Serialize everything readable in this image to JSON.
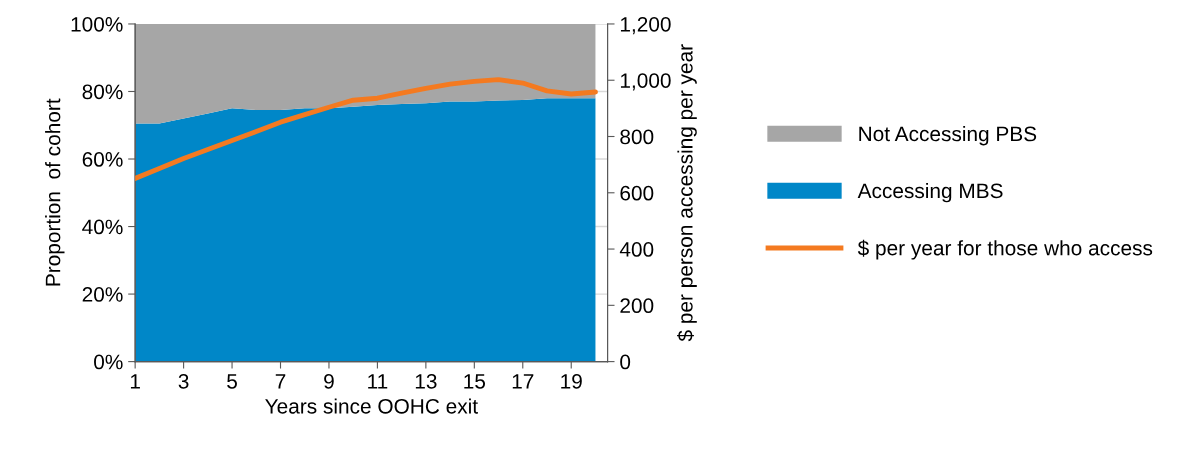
{
  "chart_data": {
    "type": "area",
    "stacked": true,
    "xlabel": "Years since OOHC exit",
    "ylabel": "Proportion  of cohort",
    "y2label": "$ per person accessing per year",
    "x": [
      1,
      2,
      3,
      4,
      5,
      6,
      7,
      8,
      9,
      10,
      11,
      12,
      13,
      14,
      15,
      16,
      17,
      18,
      19,
      20
    ],
    "series": [
      {
        "name": "Accessing MBS",
        "color": "#0087c8",
        "values": [
          70.5,
          70.5,
          72,
          73.5,
          75,
          74.5,
          74.5,
          75,
          75,
          75.5,
          76,
          76.3,
          76.5,
          77,
          77,
          77.3,
          77.5,
          78,
          78,
          78
        ]
      },
      {
        "name": "Not Accessing PBS",
        "color": "#a6a6a6",
        "values": [
          29.5,
          29.5,
          28,
          26.5,
          25,
          25.5,
          25.5,
          25,
          25,
          24.5,
          24,
          23.7,
          23.5,
          23,
          23,
          22.7,
          22.5,
          22,
          22,
          22
        ]
      },
      {
        "name": "$ per year for those who access",
        "type": "line",
        "axis": "y2",
        "color": "#f47a20",
        "values": [
          651,
          686,
          722,
          754,
          786,
          818,
          851,
          878,
          904,
          929,
          936,
          954,
          971,
          986,
          996,
          1002,
          990,
          962,
          951,
          958
        ]
      }
    ],
    "xlim": [
      1,
      20.5
    ],
    "xticks": [
      1,
      3,
      5,
      7,
      9,
      11,
      13,
      15,
      17,
      19
    ],
    "ylim": [
      0,
      100
    ],
    "yticks": [
      {
        "value": 0,
        "label": "0%"
      },
      {
        "value": 20,
        "label": "20%"
      },
      {
        "value": 40,
        "label": "40%"
      },
      {
        "value": 60,
        "label": "60%"
      },
      {
        "value": 80,
        "label": "80%"
      },
      {
        "value": 100,
        "label": "100%"
      }
    ],
    "y2lim": [
      0,
      1200
    ],
    "y2ticks": [
      0,
      {
        "value": 200,
        "label": "200"
      },
      {
        "value": 400,
        "label": "400"
      },
      {
        "value": 600,
        "label": "600"
      },
      {
        "value": 800,
        "label": "800"
      },
      {
        "value": 1000,
        "label": "1,000"
      },
      {
        "value": 1200,
        "label": "1,200"
      }
    ],
    "grid": "y",
    "legend": "right"
  }
}
